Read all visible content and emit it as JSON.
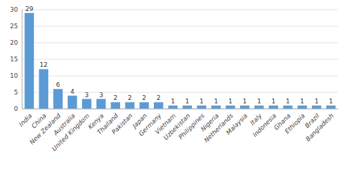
{
  "chart_data": {
    "type": "bar",
    "categories": [
      "India",
      "China",
      "New Zealand",
      "Australia",
      "United Kingdom",
      "Kenya",
      "Thailand",
      "Pakistan",
      "Japan",
      "Germany",
      "Vietnam",
      "Uzbekistan",
      "Philippines",
      "Nigeria",
      "Netherlands",
      "Malaysia",
      "Italy",
      "Indonesia",
      "Ghana",
      "Ethiopia",
      "Brazil",
      "Bangladesh"
    ],
    "values": [
      29,
      12,
      6,
      4,
      3,
      3,
      2,
      2,
      2,
      2,
      1,
      1,
      1,
      1,
      1,
      1,
      1,
      1,
      1,
      1,
      1,
      1
    ],
    "color": "#5b9bd5",
    "ylim": [
      0,
      30
    ],
    "yticks": [
      0,
      5,
      10,
      15,
      20,
      25,
      30
    ],
    "grid": true,
    "data_labels": true
  }
}
